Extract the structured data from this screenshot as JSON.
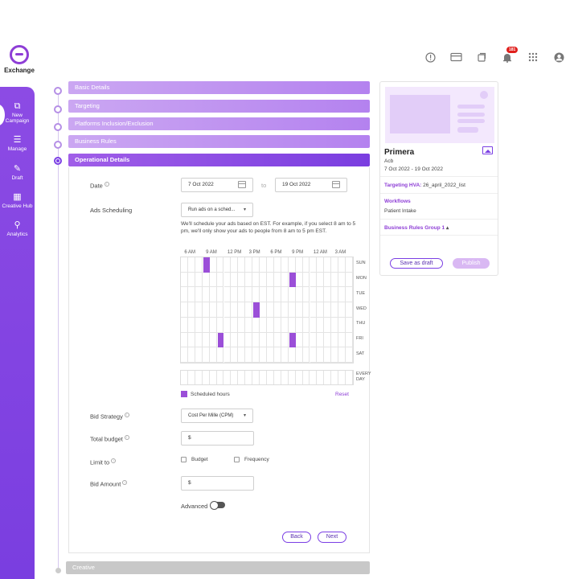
{
  "brand": {
    "name": "Exchange"
  },
  "topbar": {
    "notification_count": "181"
  },
  "sidebar": {
    "items": [
      {
        "label": "New Campaign",
        "icon": "new-campaign-icon"
      },
      {
        "label": "Manage",
        "icon": "list-icon"
      },
      {
        "label": "Draft",
        "icon": "edit-icon"
      },
      {
        "label": "Creative Hub",
        "icon": "grid-icon"
      },
      {
        "label": "Analytics",
        "icon": "analytics-icon"
      }
    ]
  },
  "steps": [
    {
      "label": "Basic Details"
    },
    {
      "label": "Targeting"
    },
    {
      "label": "Platforms Inclusion/Exclusion"
    },
    {
      "label": "Business Rules"
    },
    {
      "label": "Operational Details"
    },
    {
      "label": "Creative"
    }
  ],
  "form": {
    "date_label": "Date",
    "start_date": "7 Oct 2022",
    "to": "to",
    "end_date": "19 Oct 2022",
    "ads_scheduling_label": "Ads Scheduling",
    "ads_scheduling_value": "Run ads on a sched...",
    "schedule_note": "We'll schedule your ads based on EST. For example, if you select 8 am to 5 pm, we'll only show your ads to people from 8 am to 5 pm EST.",
    "hours": [
      "6 AM",
      "9 AM",
      "12 PM",
      "3 PM",
      "6 PM",
      "9 PM",
      "12 AM",
      "3 AM"
    ],
    "days": [
      "SUN",
      "MON",
      "TUE",
      "WED",
      "THU",
      "FRI",
      "SAT"
    ],
    "every_day": "EVERY DAY",
    "legend": "Scheduled hours",
    "reset": "Reset",
    "bid_strategy_label": "Bid Strategy",
    "bid_strategy_value": "Cost Per Mille (CPM)",
    "total_budget_label": "Total budget",
    "currency": "$",
    "limit_to_label": "Limit to",
    "limit_budget": "Budget",
    "limit_frequency": "Frequency",
    "bid_amount_label": "Bid Amount",
    "advanced_label": "Advanced",
    "back": "Back",
    "next": "Next"
  },
  "schedule_selected": [
    {
      "day": "SUN",
      "hour_index": 3
    },
    {
      "day": "MON",
      "hour_index": 15
    },
    {
      "day": "WED",
      "hour_index": 10
    },
    {
      "day": "FRI",
      "hour_index": 5
    },
    {
      "day": "FRI",
      "hour_index": 15
    }
  ],
  "summary": {
    "title": "Primera",
    "subtitle": "Acb",
    "date_range": "7 Oct 2022 - 19 Oct 2022",
    "targeting_label": "Targeting HVA:",
    "targeting_value": "26_april_2022_list",
    "workflows_label": "Workflows",
    "workflows_value": "Patient Intake",
    "business_rules": "Business Rules Group 1",
    "save_draft": "Save as draft",
    "publish": "Publish"
  },
  "colors": {
    "accent": "#7b3fe4",
    "selected": "#9b4fd8"
  }
}
